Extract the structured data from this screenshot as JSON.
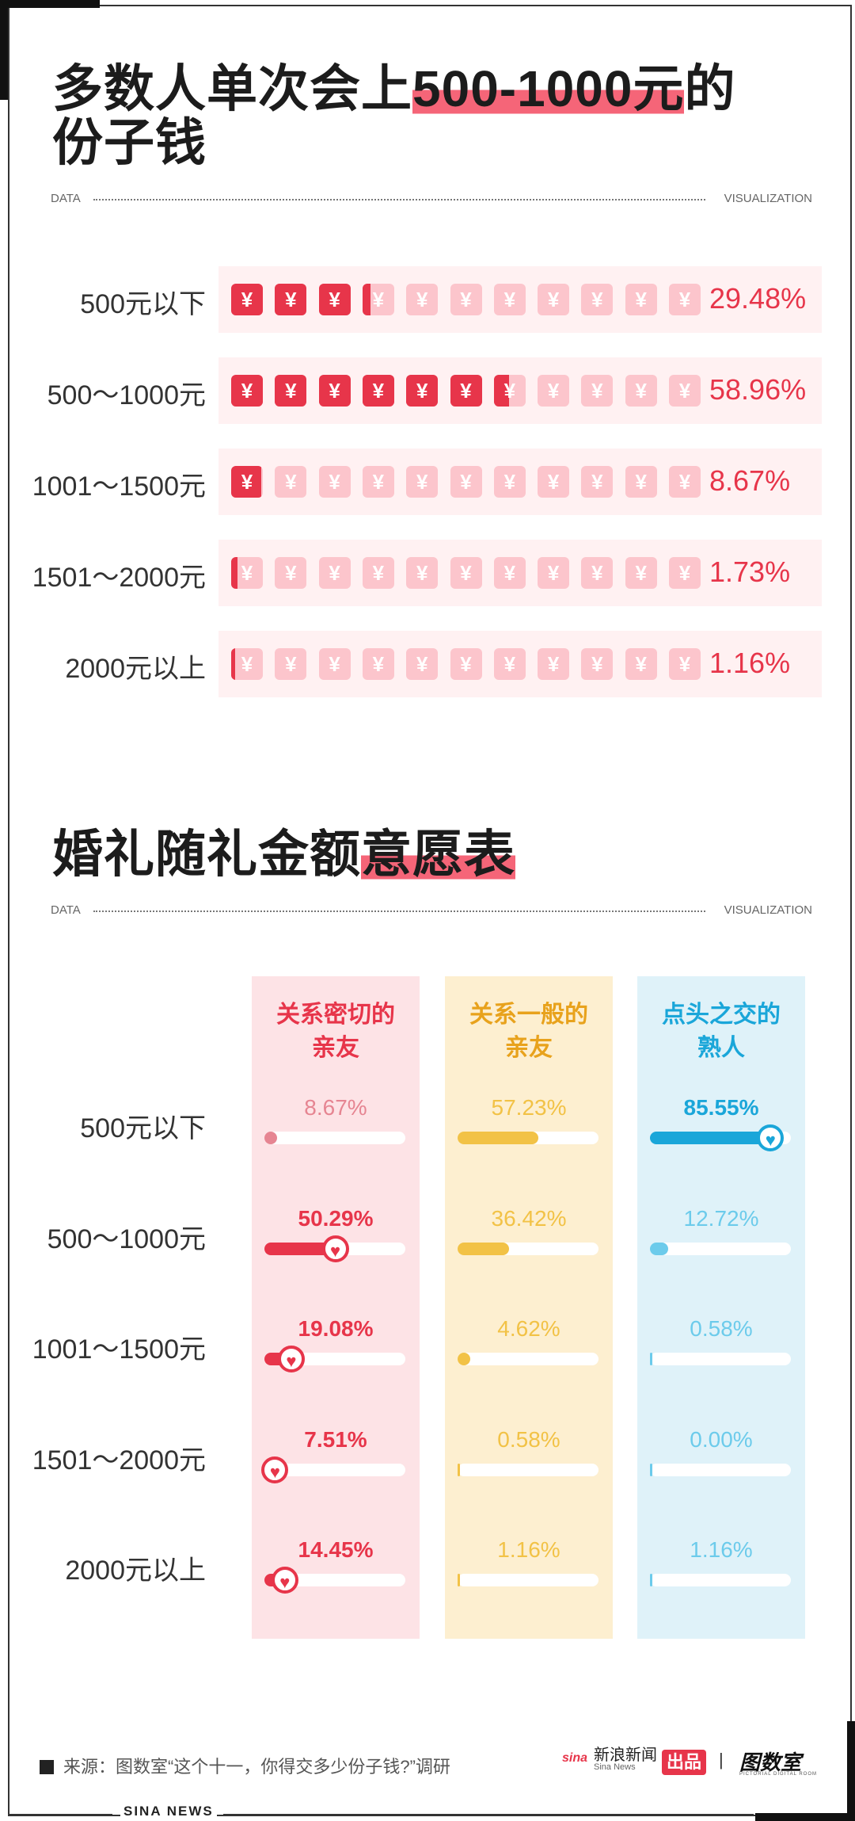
{
  "chart1": {
    "title_part1": "多数人单次会上",
    "title_highlight": "500-1000元",
    "title_part2": "的",
    "title_line2": "份子钱",
    "divider_left": "DATA",
    "divider_right": "VISUALIZATION",
    "icon": "yuan-envelope-icon",
    "icon_symbol": "¥",
    "icon_count": 11,
    "colors": {
      "filled": "#e7354a",
      "empty": "#fcc5cc",
      "row_bg": "#fff1f2"
    }
  },
  "chart_data": [
    {
      "type": "bar",
      "categories": [
        "500元以下",
        "500～1000元",
        "1001～1500元",
        "1501～2000元",
        "2000元以上"
      ],
      "values": [
        29.48,
        58.96,
        8.67,
        1.73,
        1.16
      ],
      "labels": [
        "29.48%",
        "58.96%",
        "8.67%",
        "1.73%",
        "1.16%"
      ],
      "ylim": [
        0,
        100
      ],
      "title": "多数人单次会上500-1000元的份子钱"
    },
    {
      "type": "bar",
      "title": "婚礼随礼金额意愿表",
      "categories": [
        "500元以下",
        "500～1000元",
        "1001～1500元",
        "1501～2000元",
        "2000元以上"
      ],
      "series": [
        {
          "name": "关系密切的亲友",
          "name_line1": "关系密切的",
          "name_line2": "亲友",
          "color": "#e7354a",
          "light": "#e68592",
          "bg": "#fde3e6",
          "values": [
            8.67,
            50.29,
            19.08,
            7.51,
            14.45
          ],
          "labels": [
            "8.67%",
            "50.29%",
            "19.08%",
            "7.51%",
            "14.45%"
          ]
        },
        {
          "name": "关系一般的亲友",
          "name_line1": "关系一般的",
          "name_line2": "亲友",
          "color": "#e8a21c",
          "light": "#f2c246",
          "bg": "#fdefd0",
          "values": [
            57.23,
            36.42,
            4.62,
            0.58,
            1.16
          ],
          "labels": [
            "57.23%",
            "36.42%",
            "4.62%",
            "0.58%",
            "1.16%"
          ]
        },
        {
          "name": "点头之交的熟人",
          "name_line1": "点头之交的",
          "name_line2": "熟人",
          "color": "#1aa6d9",
          "light": "#6ccbeb",
          "bg": "#dff2f9",
          "values": [
            85.55,
            12.72,
            0.58,
            0.0,
            1.16
          ],
          "labels": [
            "85.55%",
            "12.72%",
            "0.58%",
            "0.00%",
            "1.16%"
          ]
        }
      ],
      "ylim": [
        0,
        100
      ]
    }
  ],
  "chart2": {
    "title_part1": "婚礼随礼金额",
    "title_highlight": "意愿表",
    "divider_left": "DATA",
    "divider_right": "VISUALIZATION",
    "marker_icon": "heart-icon",
    "marker_symbol": "♥"
  },
  "footer": {
    "source": "来源：图数室“这个十一，你得交多少份子钱?”调研",
    "logo_sina": "新浪新闻",
    "logo_sina_sub": "Sina News",
    "logo_sina_mark": "sina",
    "badge": "出品",
    "separator": "|",
    "logo_tushushi": "图数室",
    "logo_tushushi_sub": "PICTORIAL DIGITAL ROOM",
    "bottom_tag": "SINA NEWS"
  }
}
